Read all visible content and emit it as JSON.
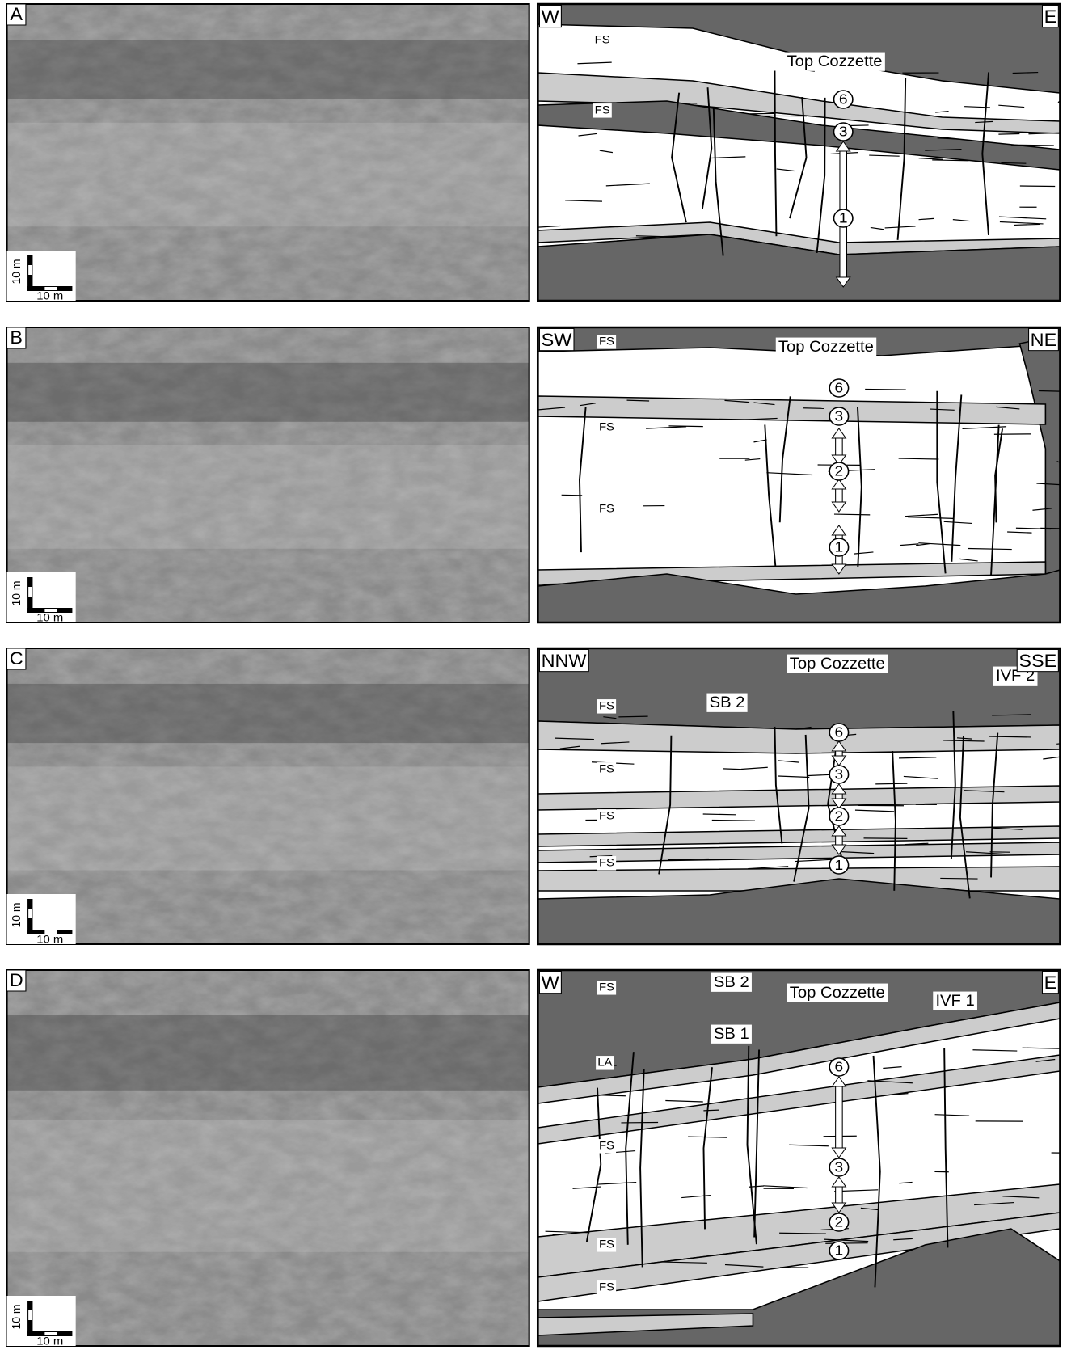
{
  "panels": [
    {
      "letter": "A",
      "scale": {
        "vertical": "10 m",
        "horizontal": "10 m"
      },
      "sketch": {
        "left_direction": "W",
        "right_direction": "E",
        "labels": [
          "FS",
          "Top Cozzette",
          "6",
          "FS",
          "3",
          "1"
        ]
      }
    },
    {
      "letter": "B",
      "scale": {
        "vertical": "10 m",
        "horizontal": "10 m"
      },
      "sketch": {
        "left_direction": "SW",
        "right_direction": "NE",
        "labels": [
          "FS",
          "Top Cozzette",
          "6",
          "3",
          "FS",
          "2",
          "FS",
          "1"
        ]
      }
    },
    {
      "letter": "C",
      "scale": {
        "vertical": "10 m",
        "horizontal": "10 m"
      },
      "sketch": {
        "left_direction": "NNW",
        "right_direction": "SSE",
        "labels": [
          "Top Cozzette",
          "IVF 2",
          "FS",
          "SB 2",
          "6",
          "FS",
          "3",
          "FS",
          "2",
          "FS",
          "1"
        ]
      }
    },
    {
      "letter": "D",
      "scale": {
        "vertical": "10 m",
        "horizontal": "10 m"
      },
      "sketch": {
        "left_direction": "W",
        "right_direction": "E",
        "labels": [
          "FS",
          "SB 2",
          "Top Cozzette",
          "IVF 1",
          "SB 1",
          "LA",
          "6",
          "FS",
          "3",
          "2",
          "FS",
          "1",
          "FS"
        ]
      }
    }
  ]
}
